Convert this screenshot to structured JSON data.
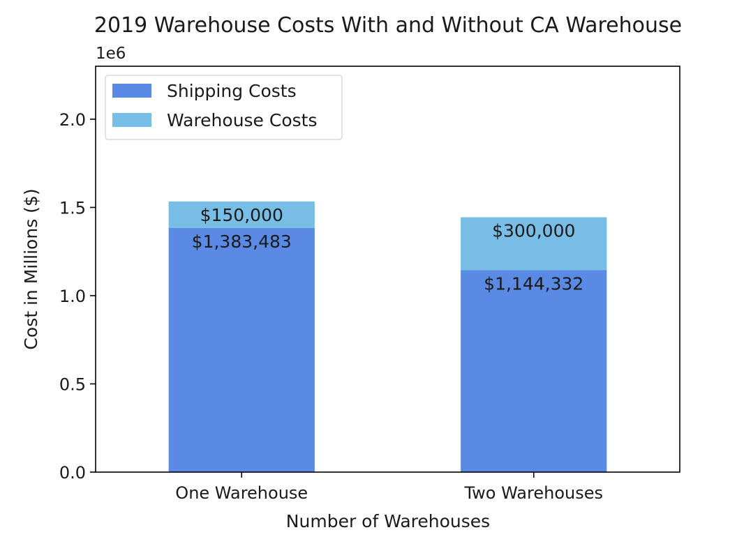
{
  "chart_data": {
    "type": "bar",
    "stacked": true,
    "title": "2019 Warehouse Costs With and Without CA Warehouse",
    "xlabel": "Number of Warehouses",
    "ylabel": "Cost in Millions ($)",
    "y_offset_label": "1e6",
    "categories": [
      "One Warehouse",
      "Two Warehouses"
    ],
    "series": [
      {
        "name": "Shipping Costs",
        "color": "#5a8ae3",
        "values": [
          1383483,
          1144332
        ],
        "labels": [
          "$1,383,483",
          "$1,144,332"
        ]
      },
      {
        "name": "Warehouse Costs",
        "color": "#78bde6",
        "values": [
          150000,
          300000
        ],
        "labels": [
          "$150,000",
          "$300,000"
        ]
      }
    ],
    "ylim": [
      0,
      2300000
    ],
    "yticks": [
      0,
      500000,
      1000000,
      1500000,
      2000000
    ],
    "ytick_labels": [
      "0.0",
      "0.5",
      "1.0",
      "1.5",
      "2.0"
    ],
    "grid": false,
    "legend_position": "top-left"
  }
}
